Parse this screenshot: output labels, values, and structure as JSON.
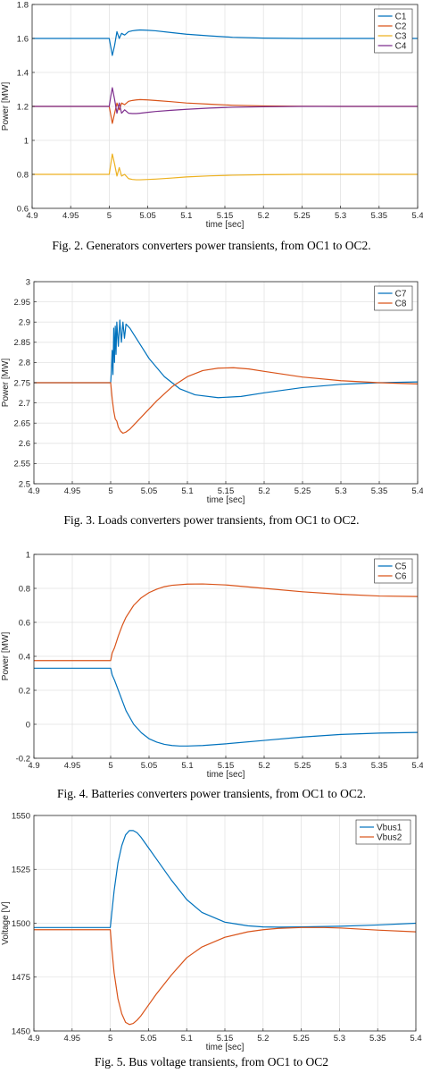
{
  "chart_data": [
    {
      "type": "line",
      "caption": "Fig. 2. Generators converters power transients, from OC1 to OC2.",
      "xlabel": "time [sec]",
      "ylabel": "Power [MW]",
      "xlim": [
        4.9,
        5.4
      ],
      "ylim": [
        0.6,
        1.8
      ],
      "xticks": [
        4.9,
        4.95,
        5,
        5.05,
        5.1,
        5.15,
        5.2,
        5.25,
        5.3,
        5.35,
        5.4
      ],
      "xtick_labels": [
        "4.9",
        "4.95",
        "5",
        "5.05",
        "5.1",
        "5.15",
        "5.2",
        "5.25",
        "5.3",
        "5.35",
        "5.4"
      ],
      "yticks": [
        0.6,
        0.8,
        1,
        1.2,
        1.4,
        1.6,
        1.8
      ],
      "ytick_labels": [
        "0.6",
        "0.8",
        "1",
        "1.2",
        "1.4",
        "1.6",
        "1.8"
      ],
      "grid": true,
      "legend": "top-right",
      "series": [
        {
          "name": "C1",
          "color": "#0072BD",
          "x": [
            4.9,
            4.99,
            5.0,
            5.002,
            5.004,
            5.007,
            5.01,
            5.013,
            5.016,
            5.02,
            5.025,
            5.03,
            5.035,
            5.04,
            5.05,
            5.06,
            5.08,
            5.1,
            5.13,
            5.16,
            5.2,
            5.25,
            5.3,
            5.35,
            5.4
          ],
          "y": [
            1.6,
            1.6,
            1.6,
            1.55,
            1.5,
            1.56,
            1.64,
            1.6,
            1.63,
            1.62,
            1.64,
            1.645,
            1.648,
            1.65,
            1.648,
            1.645,
            1.635,
            1.625,
            1.615,
            1.607,
            1.602,
            1.6,
            1.6,
            1.6,
            1.6
          ]
        },
        {
          "name": "C2",
          "color": "#D95319",
          "x": [
            4.9,
            4.99,
            5.0,
            5.002,
            5.004,
            5.007,
            5.01,
            5.013,
            5.016,
            5.02,
            5.025,
            5.03,
            5.035,
            5.04,
            5.05,
            5.06,
            5.08,
            5.1,
            5.13,
            5.16,
            5.2,
            5.25,
            5.3,
            5.35,
            5.4
          ],
          "y": [
            1.2,
            1.2,
            1.2,
            1.15,
            1.1,
            1.16,
            1.22,
            1.18,
            1.22,
            1.21,
            1.23,
            1.235,
            1.238,
            1.24,
            1.238,
            1.235,
            1.228,
            1.22,
            1.213,
            1.207,
            1.203,
            1.201,
            1.2,
            1.2,
            1.2
          ]
        },
        {
          "name": "C3",
          "color": "#EDB120",
          "x": [
            4.9,
            4.99,
            5.0,
            5.002,
            5.004,
            5.007,
            5.01,
            5.013,
            5.016,
            5.02,
            5.025,
            5.03,
            5.035,
            5.04,
            5.05,
            5.06,
            5.08,
            5.1,
            5.13,
            5.16,
            5.2,
            5.25,
            5.3,
            5.35,
            5.4
          ],
          "y": [
            0.8,
            0.8,
            0.8,
            0.86,
            0.92,
            0.86,
            0.79,
            0.84,
            0.79,
            0.8,
            0.775,
            0.77,
            0.768,
            0.768,
            0.77,
            0.772,
            0.778,
            0.785,
            0.791,
            0.795,
            0.798,
            0.8,
            0.8,
            0.8,
            0.8
          ]
        },
        {
          "name": "C4",
          "color": "#7E2F8E",
          "x": [
            4.9,
            4.99,
            5.0,
            5.002,
            5.004,
            5.007,
            5.01,
            5.013,
            5.016,
            5.02,
            5.025,
            5.03,
            5.035,
            5.04,
            5.05,
            5.06,
            5.08,
            5.1,
            5.13,
            5.16,
            5.2,
            5.25,
            5.3,
            5.35,
            5.4
          ],
          "y": [
            1.2,
            1.2,
            1.2,
            1.26,
            1.31,
            1.24,
            1.16,
            1.22,
            1.16,
            1.18,
            1.16,
            1.158,
            1.158,
            1.16,
            1.165,
            1.17,
            1.177,
            1.183,
            1.19,
            1.195,
            1.198,
            1.2,
            1.2,
            1.2,
            1.2
          ]
        }
      ]
    },
    {
      "type": "line",
      "caption": "Fig. 3. Loads converters power transients, from OC1 to OC2.",
      "xlabel": "time [sec]",
      "ylabel": "Power [MW]",
      "xlim": [
        4.9,
        5.4
      ],
      "ylim": [
        2.5,
        3
      ],
      "xticks": [
        4.9,
        4.95,
        5,
        5.05,
        5.1,
        5.15,
        5.2,
        5.25,
        5.3,
        5.35,
        5.4
      ],
      "xtick_labels": [
        "4.9",
        "4.95",
        "5",
        "5.05",
        "5.1",
        "5.15",
        "5.2",
        "5.25",
        "5.3",
        "5.35",
        "5.4"
      ],
      "yticks": [
        2.5,
        2.55,
        2.6,
        2.65,
        2.7,
        2.75,
        2.8,
        2.85,
        2.9,
        2.95,
        3
      ],
      "ytick_labels": [
        "2.5",
        "2.55",
        "2.6",
        "2.65",
        "2.7",
        "2.75",
        "2.8",
        "2.85",
        "2.9",
        "2.95",
        "3"
      ],
      "grid": true,
      "legend": "top-right",
      "series": [
        {
          "name": "C7",
          "color": "#0072BD",
          "x": [
            4.9,
            4.999,
            5.0,
            5.001,
            5.002,
            5.003,
            5.004,
            5.005,
            5.006,
            5.007,
            5.008,
            5.01,
            5.012,
            5.014,
            5.016,
            5.018,
            5.02,
            5.025,
            5.03,
            5.04,
            5.05,
            5.07,
            5.09,
            5.11,
            5.14,
            5.17,
            5.2,
            5.25,
            5.3,
            5.35,
            5.4
          ],
          "y": [
            2.75,
            2.75,
            2.75,
            2.78,
            2.83,
            2.77,
            2.885,
            2.8,
            2.89,
            2.82,
            2.9,
            2.84,
            2.905,
            2.85,
            2.9,
            2.86,
            2.895,
            2.885,
            2.87,
            2.84,
            2.81,
            2.765,
            2.735,
            2.72,
            2.713,
            2.716,
            2.725,
            2.738,
            2.746,
            2.75,
            2.752
          ]
        },
        {
          "name": "C8",
          "color": "#D95319",
          "x": [
            4.9,
            4.999,
            5.0,
            5.002,
            5.004,
            5.006,
            5.008,
            5.01,
            5.013,
            5.016,
            5.02,
            5.025,
            5.03,
            5.04,
            5.06,
            5.08,
            5.1,
            5.12,
            5.14,
            5.16,
            5.18,
            5.2,
            5.25,
            5.3,
            5.35,
            5.4
          ],
          "y": [
            2.75,
            2.75,
            2.75,
            2.71,
            2.68,
            2.66,
            2.655,
            2.64,
            2.63,
            2.625,
            2.628,
            2.635,
            2.645,
            2.665,
            2.705,
            2.74,
            2.765,
            2.78,
            2.786,
            2.787,
            2.784,
            2.778,
            2.764,
            2.755,
            2.75,
            2.747
          ]
        }
      ]
    },
    {
      "type": "line",
      "caption": "Fig. 4. Batteries converters power transients, from OC1 to OC2.",
      "xlabel": "time [sec]",
      "ylabel": "Power [MW]",
      "xlim": [
        4.9,
        5.4
      ],
      "ylim": [
        -0.2,
        1
      ],
      "xticks": [
        4.9,
        4.95,
        5,
        5.05,
        5.1,
        5.15,
        5.2,
        5.25,
        5.3,
        5.35,
        5.4
      ],
      "xtick_labels": [
        "4.9",
        "4.95",
        "5",
        "5.05",
        "5.1",
        "5.15",
        "5.2",
        "5.25",
        "5.3",
        "5.35",
        "5.4"
      ],
      "yticks": [
        -0.2,
        0,
        0.2,
        0.4,
        0.6,
        0.8,
        1
      ],
      "ytick_labels": [
        "-0.2",
        "0",
        "0.2",
        "0.4",
        "0.6",
        "0.8",
        "1"
      ],
      "grid": true,
      "legend": "top-right",
      "series": [
        {
          "name": "C5",
          "color": "#0072BD",
          "x": [
            4.9,
            4.999,
            5.0,
            5.002,
            5.005,
            5.01,
            5.015,
            5.02,
            5.03,
            5.04,
            5.05,
            5.06,
            5.07,
            5.08,
            5.09,
            5.1,
            5.12,
            5.15,
            5.2,
            5.25,
            5.3,
            5.35,
            5.4
          ],
          "y": [
            0.33,
            0.33,
            0.33,
            0.29,
            0.26,
            0.2,
            0.14,
            0.08,
            0.0,
            -0.05,
            -0.085,
            -0.105,
            -0.118,
            -0.125,
            -0.128,
            -0.128,
            -0.125,
            -0.115,
            -0.095,
            -0.075,
            -0.06,
            -0.052,
            -0.048
          ]
        },
        {
          "name": "C6",
          "color": "#D95319",
          "x": [
            4.9,
            4.999,
            5.0,
            5.002,
            5.005,
            5.01,
            5.015,
            5.02,
            5.03,
            5.04,
            5.05,
            5.06,
            5.07,
            5.08,
            5.1,
            5.12,
            5.15,
            5.2,
            5.25,
            5.3,
            5.35,
            5.4
          ],
          "y": [
            0.375,
            0.375,
            0.375,
            0.42,
            0.45,
            0.52,
            0.58,
            0.63,
            0.7,
            0.745,
            0.775,
            0.795,
            0.81,
            0.818,
            0.825,
            0.826,
            0.82,
            0.8,
            0.78,
            0.765,
            0.755,
            0.752
          ]
        }
      ]
    },
    {
      "type": "line",
      "caption": "Fig. 5. Bus voltage transients, from OC1 to OC2",
      "xlabel": "time [sec]",
      "ylabel": "Voltage [V]",
      "xlim": [
        4.9,
        5.4
      ],
      "ylim": [
        1450,
        1550
      ],
      "xticks": [
        4.9,
        4.95,
        5,
        5.05,
        5.1,
        5.15,
        5.2,
        5.25,
        5.3,
        5.35,
        5.4
      ],
      "xtick_labels": [
        "4.9",
        "4.95",
        "5",
        "5.05",
        "5.1",
        "5.15",
        "5.2",
        "5.25",
        "5.3",
        "5.35",
        "5.4"
      ],
      "yticks": [
        1450,
        1475,
        1500,
        1525,
        1550
      ],
      "ytick_labels": [
        "1450",
        "1475",
        "1500",
        "1525",
        "1550"
      ],
      "grid": true,
      "legend": "top-right",
      "series": [
        {
          "name": "Vbus1",
          "color": "#0072BD",
          "x": [
            4.9,
            5.0,
            5.002,
            5.005,
            5.01,
            5.015,
            5.02,
            5.025,
            5.03,
            5.035,
            5.04,
            5.05,
            5.06,
            5.08,
            5.1,
            5.12,
            5.15,
            5.18,
            5.2,
            5.22,
            5.25,
            5.3,
            5.35,
            5.4
          ],
          "y": [
            1498,
            1498,
            1505,
            1515,
            1528,
            1536,
            1541,
            1543,
            1543,
            1542,
            1540,
            1535,
            1530,
            1520,
            1511,
            1505,
            1500.5,
            1498.8,
            1498.3,
            1498.2,
            1498.3,
            1498.6,
            1499.2,
            1500
          ]
        },
        {
          "name": "Vbus2",
          "color": "#D95319",
          "x": [
            4.9,
            5.0,
            5.002,
            5.005,
            5.01,
            5.015,
            5.02,
            5.025,
            5.03,
            5.035,
            5.04,
            5.05,
            5.06,
            5.08,
            5.1,
            5.12,
            5.15,
            5.18,
            5.2,
            5.22,
            5.25,
            5.28,
            5.3,
            5.35,
            5.4
          ],
          "y": [
            1497,
            1497,
            1488,
            1477,
            1465,
            1458,
            1454,
            1453,
            1453.5,
            1455,
            1457,
            1462,
            1467,
            1476,
            1484,
            1489,
            1493.5,
            1496,
            1497,
            1497.6,
            1498,
            1498,
            1497.8,
            1496.8,
            1496
          ]
        }
      ]
    }
  ]
}
